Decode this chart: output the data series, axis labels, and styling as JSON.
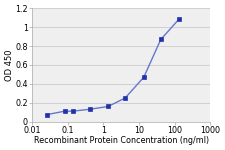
{
  "x": [
    0.027,
    0.082,
    0.137,
    0.411,
    1.37,
    4.11,
    13.7,
    41.1,
    137
  ],
  "y": [
    0.075,
    0.11,
    0.11,
    0.13,
    0.16,
    0.25,
    0.47,
    0.87,
    1.09
  ],
  "line_color": "#6677cc",
  "marker_color": "#2233aa",
  "marker": "s",
  "markersize": 2.8,
  "linewidth": 1.0,
  "xlabel": "Recombinant Protein Concentration (ng/ml)",
  "ylabel": "OD 450",
  "xlim": [
    0.01,
    1000
  ],
  "ylim": [
    0,
    1.2
  ],
  "yticks": [
    0,
    0.2,
    0.4,
    0.6,
    0.8,
    1.0,
    1.2
  ],
  "xticks": [
    0.01,
    0.1,
    1,
    10,
    100,
    1000
  ],
  "xtick_labels": [
    "0.01",
    "0.1",
    "1",
    "10",
    "100",
    "1000"
  ],
  "xlabel_fontsize": 5.8,
  "ylabel_fontsize": 6.0,
  "tick_fontsize": 5.8,
  "background_color": "#efefef"
}
